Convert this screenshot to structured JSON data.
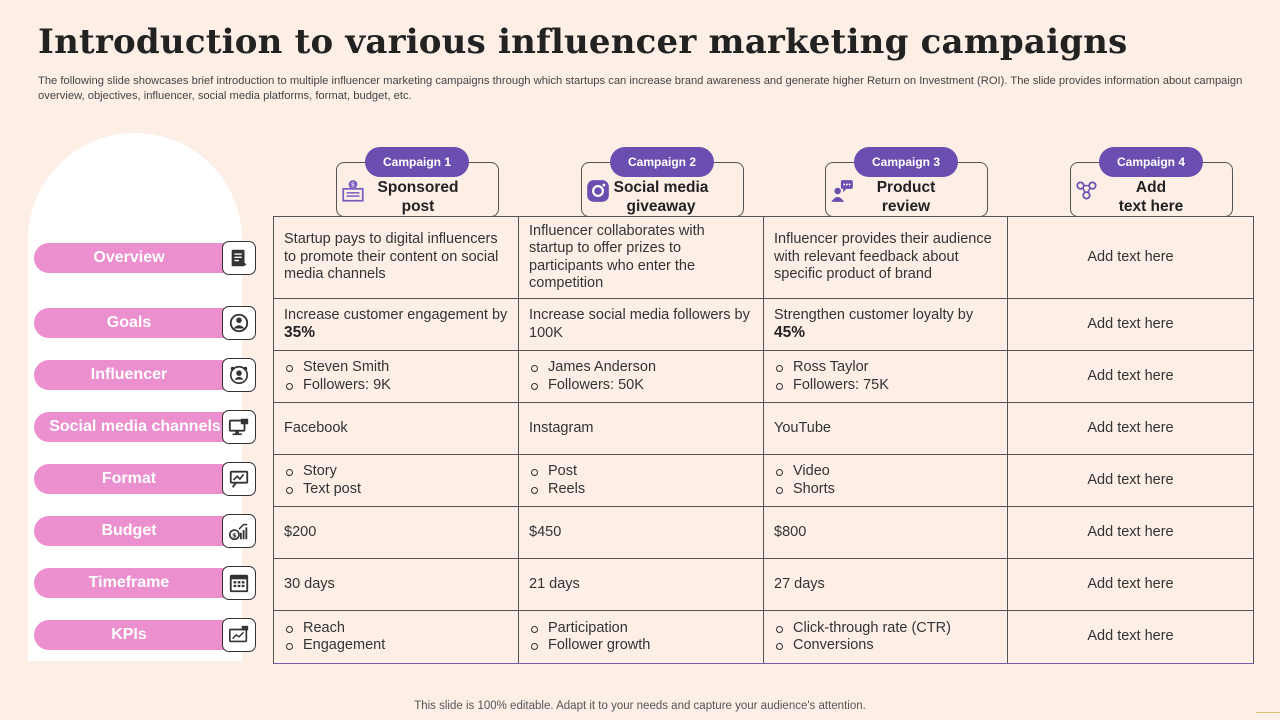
{
  "title": "Introduction to various influencer marketing campaigns",
  "subtitle": "The following slide showcases brief introduction to multiple influencer marketing campaigns through which startups can increase brand awareness and generate higher Return on Investment (ROI). The slide provides information about campaign overview, objectives, influencer, social media platforms, format, budget, etc.",
  "campaigns": [
    {
      "badge": "Campaign 1",
      "name_line1": "Sponsored",
      "name_line2": "post",
      "icon": "sponsored-post-icon"
    },
    {
      "badge": "Campaign 2",
      "name_line1": "Social media",
      "name_line2": "giveaway",
      "icon": "instagram-icon"
    },
    {
      "badge": "Campaign 3",
      "name_line1": "Product",
      "name_line2": "review",
      "icon": "reviewer-icon"
    },
    {
      "badge": "Campaign 4",
      "name_line1": "Add",
      "name_line2": "text here",
      "icon": "people-network-icon"
    }
  ],
  "rows": [
    {
      "label": "Overview",
      "icon": "document-icon",
      "cells": [
        "Startup pays to digital influencers to promote their content on social media channels",
        "Influencer collaborates with startup to offer prizes to participants who enter the competition",
        "Influencer provides their audience with relevant feedback about specific product of brand",
        "Add text here"
      ]
    },
    {
      "label": "Goals",
      "icon": "goals-icon",
      "goals": [
        {
          "text": "Increase customer engagement by",
          "pct": "35%"
        },
        {
          "text": "Increase social media followers by 100K",
          "pct": ""
        },
        {
          "text": "Strengthen customer loyalty by",
          "pct": "45%"
        }
      ],
      "last": "Add text here"
    },
    {
      "label": "Influencer",
      "icon": "influencer-icon",
      "bullets": [
        [
          "Steven Smith",
          "Followers: 9K"
        ],
        [
          "James Anderson",
          "Followers: 50K"
        ],
        [
          "Ross Taylor",
          "Followers: 75K"
        ]
      ],
      "last": "Add text here"
    },
    {
      "label": "Social media channels",
      "icon": "monitor-icon",
      "cells": [
        "Facebook",
        "Instagram",
        "YouTube",
        "Add text here"
      ]
    },
    {
      "label": "Format",
      "icon": "presentation-icon",
      "bullets": [
        [
          "Story",
          "Text post"
        ],
        [
          "Post",
          "Reels"
        ],
        [
          "Video",
          "Shorts"
        ]
      ],
      "last": "Add text here"
    },
    {
      "label": "Budget",
      "icon": "budget-chart-icon",
      "cells": [
        "$200",
        "$450",
        "$800",
        "Add text here"
      ]
    },
    {
      "label": "Timeframe",
      "icon": "calendar-icon",
      "cells": [
        "30 days",
        "21 days",
        "27 days",
        "Add text here"
      ]
    },
    {
      "label": "KPIs",
      "icon": "kpi-dashboard-icon",
      "bullets": [
        [
          "Reach",
          "Engagement"
        ],
        [
          "Participation",
          "Follower growth"
        ],
        [
          "Click-through rate (CTR)",
          "Conversions"
        ]
      ],
      "last": "Add text here"
    }
  ],
  "footer": "This slide is 100% editable. Adapt it to your needs and capture your audience's attention.",
  "colors": {
    "background": "#fdeee6",
    "pill": "#ec8fcf",
    "badge": "#6b4fb0"
  }
}
